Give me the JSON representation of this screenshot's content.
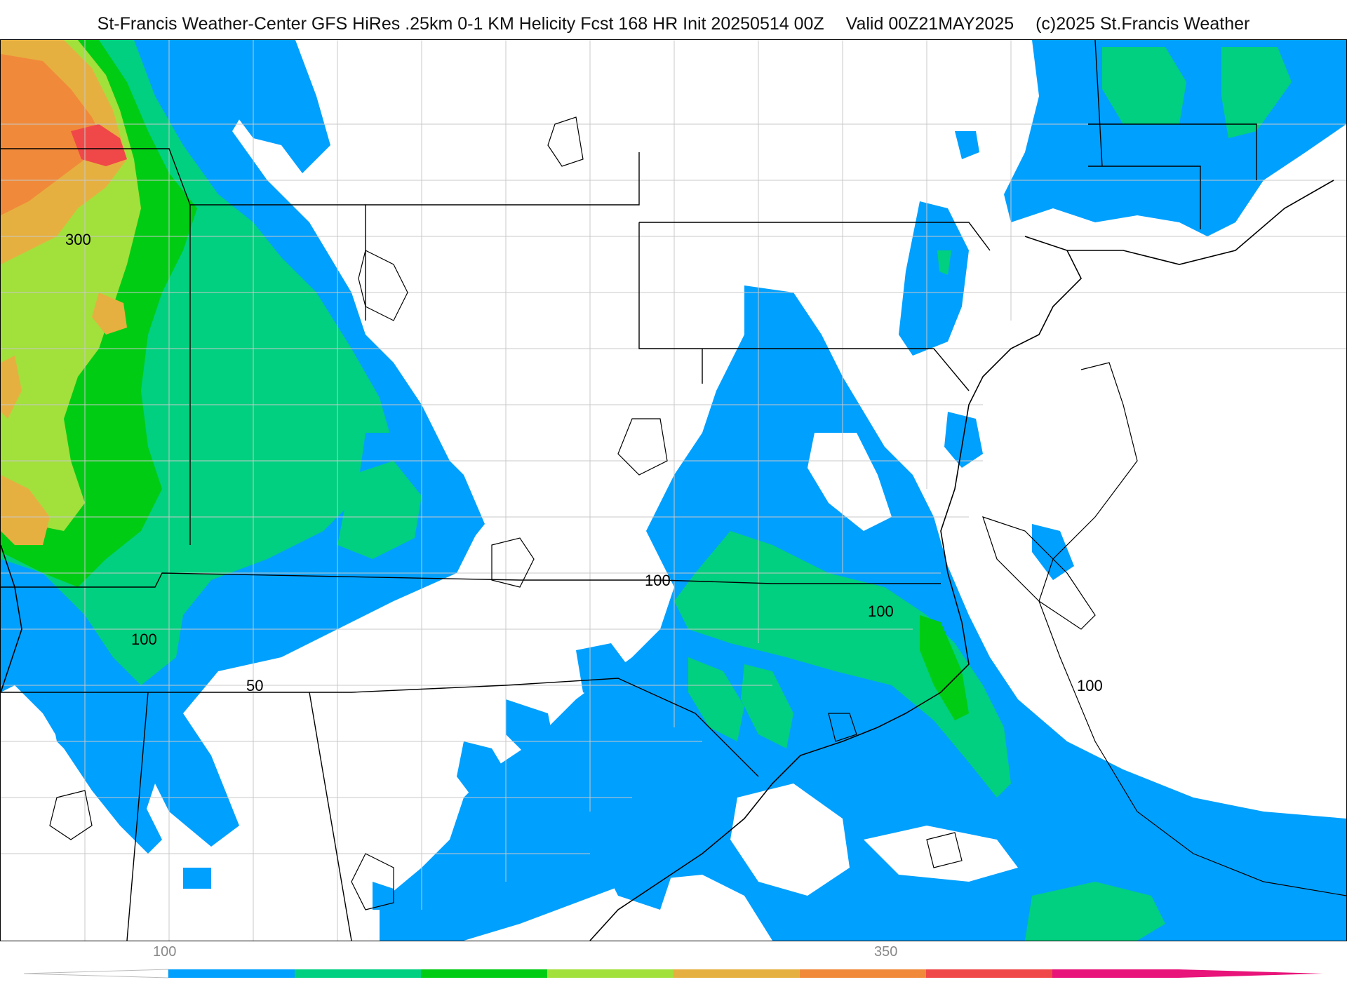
{
  "header": {
    "source": "St-Francis Weather-Center GFS HiRes .25km 0-1 KM Helicity Fcst 168 HR Init 20250514 00Z",
    "valid": "Valid 00Z21MAY2025",
    "copyright": "(c)2025 St.Francis Weather"
  },
  "map": {
    "variable": "0-1 KM Helicity",
    "contour_labels": [
      {
        "id": "c300",
        "text": "300"
      },
      {
        "id": "c100a",
        "text": "100"
      },
      {
        "id": "c100b",
        "text": "100"
      },
      {
        "id": "c100c",
        "text": "100"
      },
      {
        "id": "c100d",
        "text": "100"
      },
      {
        "id": "c50",
        "text": "50"
      }
    ],
    "fill_colors": {
      "band_100_150": "#00a0ff",
      "band_150_200": "#00d080",
      "band_200_250": "#00cc14",
      "band_250_300": "#a2e03c",
      "band_300_350": "#e6b040",
      "band_350_400": "#f08a3a",
      "band_400_450": "#f04848",
      "band_450_plus": "#e8147a",
      "state_borders": "#000000",
      "county_borders": "#c8c8c8"
    }
  },
  "colorbar": {
    "tick_labels": [
      "100",
      "350"
    ],
    "segments": [
      {
        "color": "#00a0ff"
      },
      {
        "color": "#00d080"
      },
      {
        "color": "#00cc14"
      },
      {
        "color": "#a2e03c"
      },
      {
        "color": "#e6b040"
      },
      {
        "color": "#f08a3a"
      },
      {
        "color": "#f04848"
      },
      {
        "color": "#e8147a"
      }
    ]
  }
}
